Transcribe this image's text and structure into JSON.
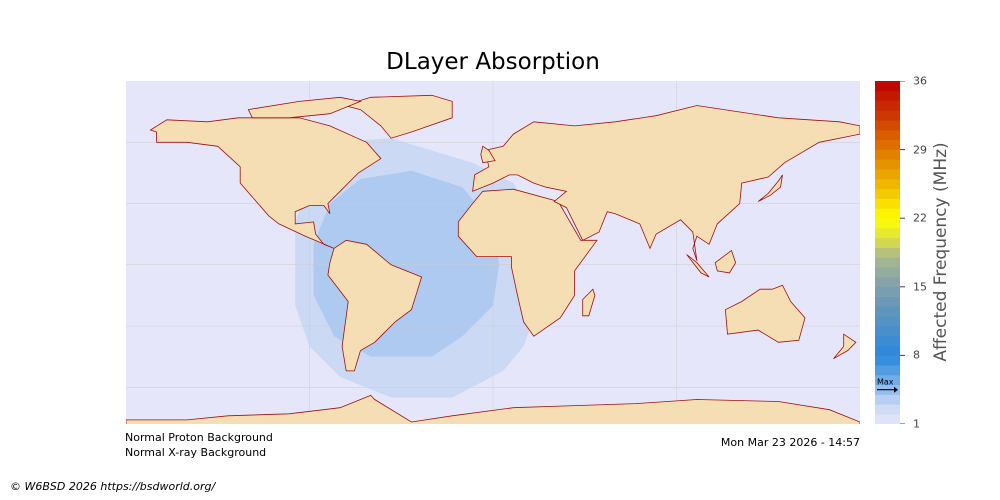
{
  "title": "DLayer Absorption",
  "colors": {
    "ocean": "#e6e6fa",
    "land": "#f5deb3",
    "coast": "#a01010",
    "absorption_outer": "#cbd9f4",
    "absorption_inner": "#afcaf0"
  },
  "colorbar": {
    "label": "Affected Frequency (MHz)",
    "min": 1,
    "max": 36,
    "ticks": [
      "36",
      "29",
      "22",
      "15",
      "8",
      "1"
    ],
    "max_marker_label": "Max",
    "max_marker_value": 4.5
  },
  "status": {
    "proton": "Normal Proton Background",
    "xray": "Normal X-ray Background",
    "timestamp": "Mon Mar 23 2026 - 14:57"
  },
  "copyright": "© W6BSD 2026 https://bsdworld.org/"
}
